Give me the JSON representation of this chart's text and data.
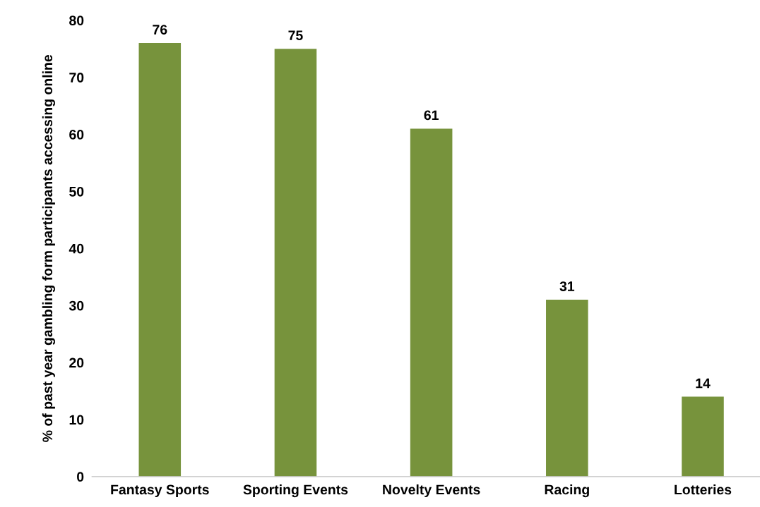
{
  "chart_data": {
    "type": "bar",
    "ylabel": "% of past year gambling form participants accessing online",
    "categories": [
      "Fantasy Sports",
      "Sporting Events",
      "Novelty Events",
      "Racing",
      "Lotteries"
    ],
    "values": [
      76,
      75,
      61,
      31,
      14
    ],
    "color": "#77933c",
    "ylim": [
      0,
      80
    ],
    "yticks": [
      0,
      10,
      20,
      30,
      40,
      50,
      60,
      70,
      80
    ],
    "data_labels": true,
    "grid": false,
    "legend": false
  }
}
